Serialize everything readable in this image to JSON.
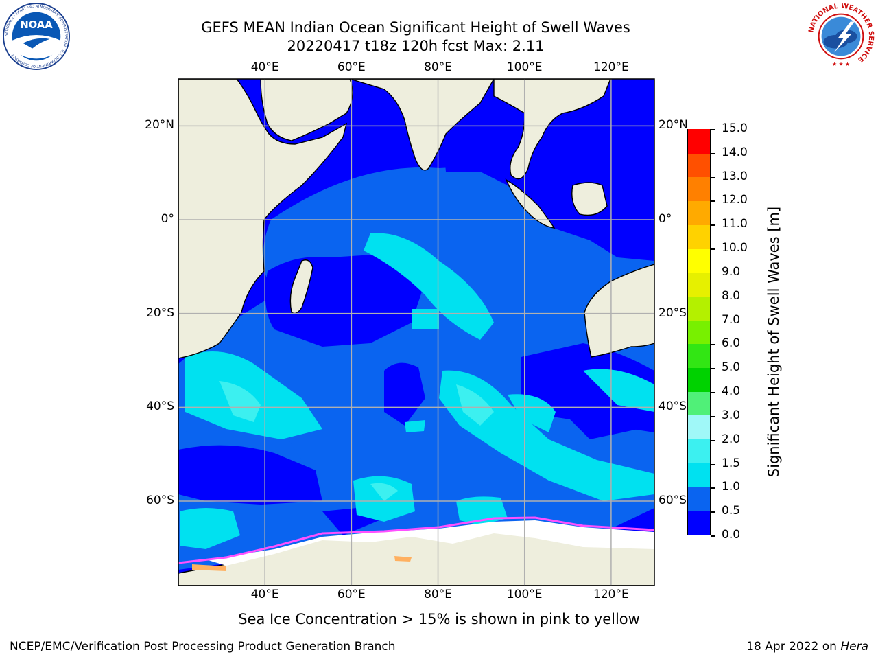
{
  "header": {
    "title_line1": "GEFS MEAN Indian Ocean Significant Height of Swell Waves",
    "title_line2": "20220417 t18z 120h fcst   Max: 2.11"
  },
  "logos": {
    "left": "noaa-logo",
    "left_text": "NOAA",
    "left_ring_text": "NATIONAL OCEANIC AND ATMOSPHERIC ADMINISTRATION · U.S. DEPARTMENT OF COMMERCE",
    "right": "national-weather-service-logo",
    "right_ring_text": "NATIONAL WEATHER SERVICE"
  },
  "map": {
    "projection": "lat-lon",
    "lon_range": [
      20,
      130
    ],
    "lat_range": [
      -78,
      30
    ],
    "x_ticks": [
      {
        "value": 40,
        "label": "40°E"
      },
      {
        "value": 60,
        "label": "60°E"
      },
      {
        "value": 80,
        "label": "80°E"
      },
      {
        "value": 100,
        "label": "100°E"
      },
      {
        "value": 120,
        "label": "120°E"
      }
    ],
    "y_ticks": [
      {
        "value": 20,
        "label": "20°N"
      },
      {
        "value": 0,
        "label": "0°"
      },
      {
        "value": -20,
        "label": "20°S"
      },
      {
        "value": -40,
        "label": "40°S"
      },
      {
        "value": -60,
        "label": "60°S"
      }
    ],
    "grid": true
  },
  "colorbar": {
    "label": "Significant Height of Swell Waves [m]",
    "levels": [
      "0.0",
      "0.5",
      "1.0",
      "1.5",
      "2.0",
      "3.0",
      "4.0",
      "5.0",
      "6.0",
      "7.0",
      "8.0",
      "9.0",
      "10.0",
      "11.0",
      "12.0",
      "13.0",
      "14.0",
      "15.0"
    ],
    "colors": [
      "#0000ff",
      "#0a64f0",
      "#00e1f0",
      "#3cf0f0",
      "#a0f8f8",
      "#50f078",
      "#00d200",
      "#32e614",
      "#78f000",
      "#b4f000",
      "#e6f000",
      "#ffff00",
      "#ffd200",
      "#ffaa00",
      "#ff8000",
      "#ff5000",
      "#ff0000"
    ]
  },
  "colors": {
    "land": "#eeeedd",
    "sea_ice": "#ffffff",
    "ice_edge": "#ff50ff",
    "grid": "#b0b0b0"
  },
  "note": "Sea Ice Concentration > 15% is shown in pink to yellow",
  "footer": {
    "left": "NCEP/EMC/Verification Post Processing Product Generation Branch",
    "right_prefix": "18 Apr 2022 on ",
    "right_host": "Hera"
  }
}
